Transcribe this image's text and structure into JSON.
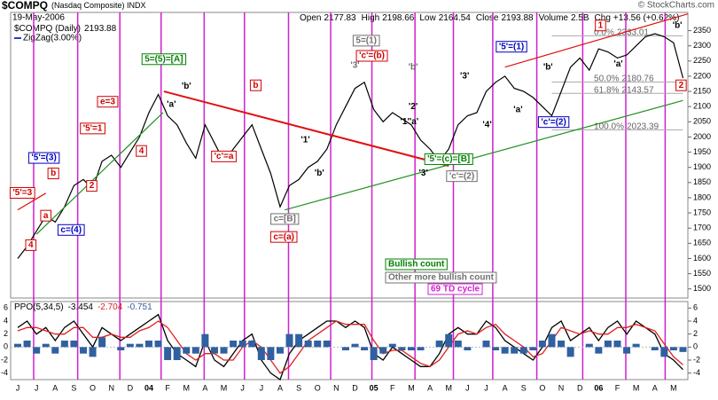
{
  "header": {
    "symbol": "$COMPQ",
    "name": "(Nasdaq Composite) INDX",
    "date": "19-May-2006",
    "copyright": "© StockCharts.com",
    "quote": [
      {
        "label": "Open",
        "value": 2177.83
      },
      {
        "label": "High",
        "value": 2198.66
      },
      {
        "label": "Low",
        "value": 2164.54
      },
      {
        "label": "Close",
        "value": 2193.88
      },
      {
        "label": "Volume",
        "value": "2.5B"
      },
      {
        "label": "Chg",
        "value": "+13.56 (+0.62%)"
      }
    ],
    "zigzag": "ZigZag(3.00%)"
  },
  "chart_data": [
    {
      "type": "line",
      "categories": [
        "J",
        null,
        "J",
        null,
        "A",
        null,
        "S",
        null,
        "O",
        null,
        "N",
        null,
        "D",
        null,
        "04",
        null,
        "F",
        null,
        "M",
        null,
        "A",
        null,
        "M",
        null,
        "J",
        null,
        "J",
        null,
        "A",
        null,
        "S",
        null,
        "O",
        null,
        "N",
        null,
        "D",
        null,
        "05",
        null,
        "F",
        null,
        "M",
        null,
        "A",
        null,
        "M",
        null,
        "J",
        null,
        "J",
        null,
        "A",
        null,
        "S",
        null,
        "O",
        null,
        "N",
        null,
        "D",
        null,
        "06",
        null,
        "F",
        null,
        "M",
        null,
        "A",
        null,
        "M",
        null
      ],
      "series": [
        {
          "name": "$COMPQ (Daily)",
          "color": "#000000",
          "values": [
            1600,
            1640,
            1690,
            1740,
            1720,
            1770,
            1840,
            1860,
            1830,
            1920,
            1940,
            1900,
            1950,
            2000,
            2080,
            2140,
            2070,
            2040,
            1980,
            1930,
            2040,
            1980,
            1920,
            1960,
            2000,
            2040,
            1960,
            1880,
            1770,
            1840,
            1860,
            1900,
            1920,
            1960,
            2040,
            2100,
            2160,
            2180,
            2090,
            2050,
            2080,
            2060,
            2040,
            1990,
            1960,
            1920,
            1960,
            2040,
            2070,
            2080,
            2150,
            2180,
            2200,
            2160,
            2150,
            2130,
            2100,
            2070,
            2150,
            2230,
            2260,
            2220,
            2290,
            2280,
            2260,
            2270,
            2300,
            2330,
            2340,
            2330,
            2310,
            2193.88
          ]
        }
      ],
      "ylim": [
        1470,
        2410
      ],
      "yticks": [
        1500,
        1550,
        1600,
        1650,
        1700,
        1750,
        1800,
        1850,
        1900,
        1950,
        2000,
        2050,
        2100,
        2150,
        2200,
        2250,
        2300,
        2350
      ],
      "cycle_color": "#d020d0",
      "cycle_x": [
        1.7,
        6.4,
        10.9,
        15.3,
        19.9,
        24.2,
        28.9,
        33.4,
        37.8,
        42.4,
        46.5,
        50.7,
        55.4,
        60.3,
        64.9,
        69.1
      ],
      "trend_lines": [
        {
          "color": "#e01010",
          "x": [
            15.6,
            46
          ],
          "y": [
            2150,
            1905
          ]
        },
        {
          "color": "#e01010",
          "x": [
            52,
            71.5
          ],
          "y": [
            2230,
            2405
          ]
        },
        {
          "color": "#e01010",
          "x": [
            0,
            3
          ],
          "y": [
            1760,
            1815
          ]
        },
        {
          "color": "#209020",
          "x": [
            2,
            15.5
          ],
          "y": [
            1680,
            2080
          ]
        },
        {
          "color": "#209020",
          "x": [
            28.5,
            71
          ],
          "y": [
            1760,
            2120
          ]
        }
      ],
      "fib_levels": [
        {
          "label": "0.0%",
          "value": 2333.01
        },
        {
          "label": "50.0%",
          "value": 2180.76
        },
        {
          "label": "61.8%",
          "value": 2143.57
        },
        {
          "label": "100.0%",
          "value": 2023.39
        }
      ],
      "annotations": [
        {
          "text": "'5'=3",
          "x": 0.5,
          "y": 1816,
          "color": "#d00000",
          "box": true
        },
        {
          "text": "4",
          "x": 1.4,
          "y": 1644,
          "color": "#d00000",
          "box": true
        },
        {
          "text": "'5'=(3)",
          "x": 2.8,
          "y": 1931,
          "color": "#0000c0",
          "box": true
        },
        {
          "text": "b",
          "x": 3.8,
          "y": 1880,
          "color": "#d00000",
          "box": true
        },
        {
          "text": "a",
          "x": 3,
          "y": 1741,
          "color": "#d00000",
          "box": true
        },
        {
          "text": "c=(4)",
          "x": 5.7,
          "y": 1694,
          "color": "#0000c0",
          "box": true
        },
        {
          "text": "2",
          "x": 7.9,
          "y": 1839,
          "color": "#d00000",
          "box": true
        },
        {
          "text": "'5'=1",
          "x": 8,
          "y": 2028,
          "color": "#d00000",
          "box": true
        },
        {
          "text": "e=3",
          "x": 9.6,
          "y": 2116,
          "color": "#d00000",
          "box": true
        },
        {
          "text": "4",
          "x": 13.2,
          "y": 1954,
          "color": "#d00000",
          "box": true
        },
        {
          "text": "5=(5)=[A]",
          "x": 15.6,
          "y": 2256,
          "color": "#008000",
          "box": true
        },
        {
          "text": "'b'",
          "x": 18,
          "y": 2167,
          "color": "#000000",
          "box": false
        },
        {
          "text": "'a'",
          "x": 16.4,
          "y": 2107,
          "color": "#000000",
          "box": false
        },
        {
          "text": "'c'=a",
          "x": 22,
          "y": 1936,
          "color": "#d00000",
          "box": true
        },
        {
          "text": "b",
          "x": 25.4,
          "y": 2170,
          "color": "#d00000",
          "box": true
        },
        {
          "text": "c=[B]",
          "x": 28.5,
          "y": 1730,
          "color": "#707070",
          "box": true
        },
        {
          "text": "c=(a)",
          "x": 28.4,
          "y": 1671,
          "color": "#d00000",
          "box": true
        },
        {
          "text": "'1'",
          "x": 30.7,
          "y": 1990,
          "color": "#000000",
          "box": false
        },
        {
          "text": "'b'",
          "x": 32.2,
          "y": 1880,
          "color": "#000000",
          "box": false
        },
        {
          "text": "'3'",
          "x": 36,
          "y": 2235,
          "color": "#707070",
          "box": false
        },
        {
          "text": "5=(1)",
          "x": 37.2,
          "y": 2317,
          "color": "#707070",
          "box": true
        },
        {
          "text": "'c'=(b)",
          "x": 37.8,
          "y": 2267,
          "color": "#d00000",
          "box": true
        },
        {
          "text": "'b'",
          "x": 42.2,
          "y": 2230,
          "color": "#707070",
          "box": false
        },
        {
          "text": "'2'",
          "x": 42.2,
          "y": 2100,
          "color": "#000000",
          "box": false
        },
        {
          "text": "'1''a'",
          "x": 41.8,
          "y": 2050,
          "color": "#000000",
          "box": false
        },
        {
          "text": "'3'",
          "x": 43.3,
          "y": 1880,
          "color": "#000000",
          "box": false
        },
        {
          "text": "'5'=(c)=[B]",
          "x": 46,
          "y": 1927,
          "color": "#008000",
          "box": true
        },
        {
          "text": "'c'=(2)",
          "x": 47.4,
          "y": 1871,
          "color": "#707070",
          "box": true
        },
        {
          "text": "'3'",
          "x": 47.7,
          "y": 2200,
          "color": "#000000",
          "box": false
        },
        {
          "text": "'4'",
          "x": 50.1,
          "y": 2040,
          "color": "#000000",
          "box": false
        },
        {
          "text": "'5'=(1)",
          "x": 52.7,
          "y": 2297,
          "color": "#0000c0",
          "box": true
        },
        {
          "text": "'a'",
          "x": 53.4,
          "y": 2090,
          "color": "#000000",
          "box": false
        },
        {
          "text": "'b'",
          "x": 56.6,
          "y": 2230,
          "color": "#000000",
          "box": false
        },
        {
          "text": "'c'=(2)",
          "x": 57.2,
          "y": 2049,
          "color": "#0000c0",
          "box": true
        },
        {
          "text": "1",
          "x": 62.2,
          "y": 2367,
          "color": "#d00000",
          "box": true
        },
        {
          "text": "'a'",
          "x": 64.1,
          "y": 2240,
          "color": "#000000",
          "box": false
        },
        {
          "text": "'b'",
          "x": 70.4,
          "y": 2367,
          "color": "#000000",
          "box": false
        },
        {
          "text": "2",
          "x": 70.8,
          "y": 2170,
          "color": "#d00000",
          "box": true
        }
      ],
      "notes": [
        {
          "text": "Bullish count",
          "color": "#008000"
        },
        {
          "text": "Other more bullish count",
          "color": "#707070"
        },
        {
          "text": "69 TD cycle",
          "color": "#d020d0"
        }
      ]
    },
    {
      "type": "line",
      "name": "PPO(5,34,5)",
      "series": [
        {
          "color": "#000000",
          "values": [
            3,
            4,
            2,
            3,
            1,
            3,
            4,
            2,
            0,
            3,
            2,
            1,
            2,
            3,
            4,
            5,
            1,
            -1,
            -2,
            -3,
            1,
            -2,
            -3,
            -1,
            1,
            2,
            -2,
            -4,
            -5,
            -1,
            1,
            2,
            3,
            4,
            4,
            3,
            4,
            3,
            -1,
            -2,
            0,
            -1,
            -2,
            -3,
            -3,
            -1,
            2,
            3,
            2,
            2,
            4,
            3,
            1,
            0,
            -1,
            -2,
            0,
            3,
            4,
            1,
            2,
            3,
            1,
            3,
            4,
            2,
            4,
            3,
            2,
            -1,
            -2,
            -3.454
          ]
        },
        {
          "color": "#e02020",
          "values": [
            2.5,
            3,
            3,
            2.5,
            2,
            2,
            3,
            3,
            1.5,
            1.5,
            2,
            1.5,
            1.5,
            2.5,
            3,
            4,
            3,
            1,
            -1,
            -2,
            -1,
            -1,
            -2,
            -2,
            0,
            1,
            0,
            -2,
            -4,
            -3,
            -1,
            1,
            2,
            3,
            4,
            3.5,
            3.5,
            3.5,
            1,
            -1,
            -0.5,
            -0.5,
            -1.5,
            -2.5,
            -3,
            -2,
            0,
            2,
            2.5,
            2,
            3,
            3.5,
            2,
            1,
            0,
            -1.5,
            -1,
            1,
            3,
            2.5,
            2,
            2.5,
            2,
            2,
            3,
            3,
            3.5,
            3,
            2.5,
            0.5,
            -1.5,
            -2.704
          ]
        },
        {
          "color": "#3060a0",
          "style": "bar",
          "values": [
            0.5,
            1,
            -1,
            0.5,
            -1,
            1,
            1,
            -1,
            -1.5,
            1.5,
            0,
            -0.5,
            0.5,
            0.5,
            1,
            1,
            -2,
            -2,
            -1,
            -1,
            2,
            -1,
            -1,
            1,
            1,
            1,
            -2,
            -2,
            -1,
            2,
            2,
            1,
            1,
            1,
            0,
            -0.5,
            0.5,
            -0.5,
            -2,
            -1,
            0.5,
            -0.5,
            -0.5,
            -0.5,
            0,
            1,
            2,
            1,
            -0.5,
            0,
            1,
            -0.5,
            -1,
            -1,
            -1,
            -0.5,
            1,
            2,
            1,
            -1.5,
            0,
            0.5,
            -1,
            1,
            1,
            -1,
            0.5,
            0,
            -0.5,
            -1.5,
            -0.5,
            -0.751
          ]
        }
      ],
      "ylim": [
        -5,
        7
      ],
      "yticks": [
        -4,
        -2,
        0,
        2,
        4,
        6
      ]
    }
  ]
}
